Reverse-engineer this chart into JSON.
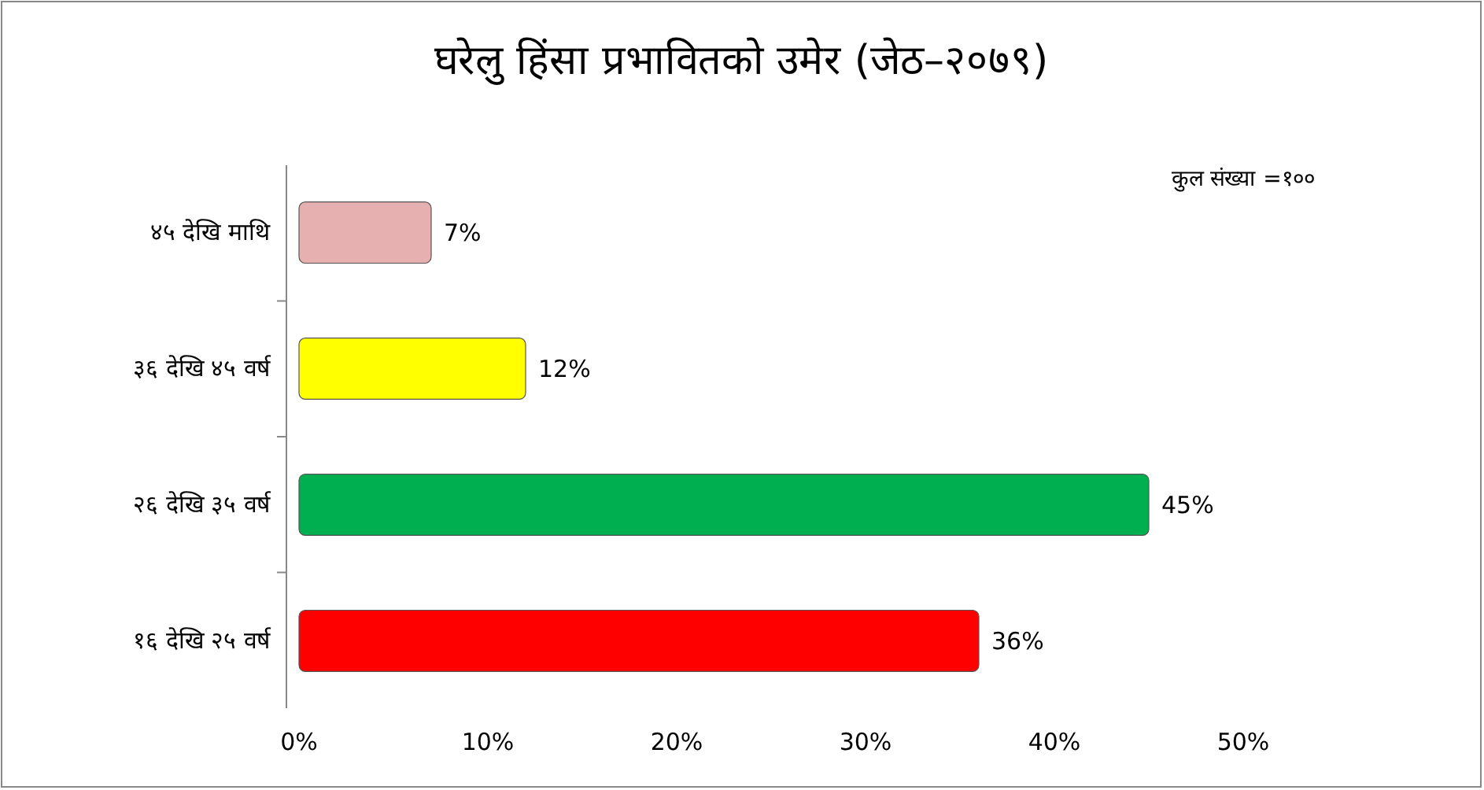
{
  "chart_data": {
    "type": "bar",
    "orientation": "horizontal",
    "title": "घरेलु हिंसा प्रभावितको उमेर (जेठ–२०७९)",
    "categories": [
      "४५ देखि माथि",
      "३६ देखि ४५ वर्ष",
      "२६ देखि ३५ वर्ष",
      "१६ देखि २५ वर्ष"
    ],
    "values": [
      7,
      12,
      45,
      36
    ],
    "colors": [
      "#e6b0b0",
      "#ffff00",
      "#00b050",
      "#ff0000"
    ],
    "value_labels": [
      "7%",
      "12%",
      "45%",
      "36%"
    ],
    "xlim": [
      0,
      50
    ],
    "xticks": [
      {
        "value": 0,
        "label": "0%"
      },
      {
        "value": 10,
        "label": "10%"
      },
      {
        "value": 20,
        "label": "20%"
      },
      {
        "value": 30,
        "label": "30%"
      },
      {
        "value": 40,
        "label": "40%"
      },
      {
        "value": 50,
        "label": "50%"
      }
    ],
    "annotations": [
      "कुल संख्या =१००"
    ],
    "grid": false
  }
}
